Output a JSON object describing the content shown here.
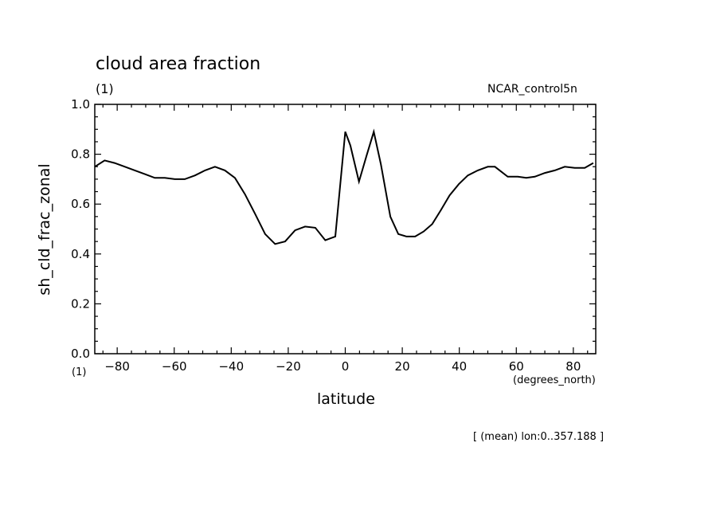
{
  "chart_data": {
    "type": "line",
    "title": "cloud area fraction",
    "title_unit": "(1)",
    "experiment": "NCAR_control5n",
    "xlabel": "latitude",
    "x_unit": "(degrees_north)",
    "ylabel": "sh_cld_frac_zonal",
    "y_unit": "(1)",
    "footer": "[ (mean) lon:0..357.188 ]",
    "xlim": [
      -87.8638,
      87.8638
    ],
    "ylim": [
      0.0,
      1.0
    ],
    "x_ticks": [
      -80,
      -60,
      -40,
      -20,
      0,
      20,
      40,
      60,
      80
    ],
    "y_ticks": [
      0.0,
      0.2,
      0.4,
      0.6,
      0.8,
      1.0
    ],
    "x_tick_labels": [
      "−80",
      "−60",
      "−40",
      "−20",
      "0",
      "20",
      "40",
      "60",
      "80"
    ],
    "y_tick_labels": [
      "0.0",
      "0.2",
      "0.4",
      "0.6",
      "0.8",
      "1.0"
    ],
    "grid": false,
    "series": [
      {
        "x": [
          -87.9,
          -84.4,
          -80.9,
          -77.3,
          -73.8,
          -70.3,
          -66.8,
          -63.3,
          -59.8,
          -56.3,
          -52.7,
          -49.2,
          -45.7,
          -42.2,
          -38.7,
          -35.2,
          -31.6,
          -28.1,
          -24.6,
          -21.1,
          -17.6,
          -14.1,
          -10.5,
          -7.0,
          -3.5,
          0.0,
          1.8,
          4.8,
          7.5,
          10.0,
          12.5,
          15.8,
          18.6,
          21.5,
          24.5,
          27.5,
          30.5,
          33.5,
          36.6,
          39.8,
          43.0,
          46.5,
          50.0,
          52.5,
          57.0,
          60.5,
          63.5,
          66.5,
          70.0,
          73.5,
          77.0,
          80.5,
          84.0,
          87.0
        ],
        "values": [
          0.75,
          0.775,
          0.765,
          0.75,
          0.735,
          0.72,
          0.705,
          0.705,
          0.7,
          0.7,
          0.715,
          0.735,
          0.75,
          0.735,
          0.705,
          0.64,
          0.56,
          0.48,
          0.44,
          0.45,
          0.495,
          0.51,
          0.505,
          0.455,
          0.47,
          0.89,
          0.835,
          0.69,
          0.795,
          0.89,
          0.76,
          0.55,
          0.48,
          0.47,
          0.47,
          0.49,
          0.52,
          0.575,
          0.635,
          0.68,
          0.715,
          0.735,
          0.75,
          0.75,
          0.71,
          0.71,
          0.705,
          0.71,
          0.725,
          0.735,
          0.75,
          0.745,
          0.745,
          0.765
        ]
      }
    ]
  }
}
